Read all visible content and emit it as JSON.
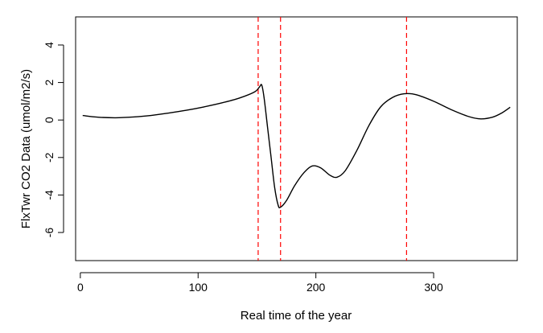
{
  "chart_data": {
    "type": "line",
    "title": "",
    "xlabel": "Real time of the year",
    "ylabel": "FlxTwr CO2 Data (umol/m2/s)",
    "xlim": [
      -4,
      371
    ],
    "ylim": [
      -7.5,
      5.5
    ],
    "x_ticks": [
      0,
      100,
      200,
      300
    ],
    "y_ticks": [
      -6,
      -4,
      -2,
      0,
      2,
      4
    ],
    "grid": false,
    "legend": "none",
    "series": [
      {
        "color": "#000000",
        "points": [
          [
            2,
            0.24
          ],
          [
            15,
            0.15
          ],
          [
            30,
            0.12
          ],
          [
            45,
            0.16
          ],
          [
            60,
            0.24
          ],
          [
            75,
            0.37
          ],
          [
            90,
            0.52
          ],
          [
            105,
            0.7
          ],
          [
            120,
            0.91
          ],
          [
            135,
            1.17
          ],
          [
            148,
            1.5
          ],
          [
            152,
            1.75
          ],
          [
            154,
            1.87
          ],
          [
            156,
            1.2
          ],
          [
            159,
            -0.4
          ],
          [
            162,
            -2.0
          ],
          [
            165,
            -3.6
          ],
          [
            168,
            -4.55
          ],
          [
            170,
            -4.65
          ],
          [
            175,
            -4.3
          ],
          [
            182,
            -3.5
          ],
          [
            190,
            -2.8
          ],
          [
            197,
            -2.45
          ],
          [
            204,
            -2.55
          ],
          [
            212,
            -2.95
          ],
          [
            218,
            -3.05
          ],
          [
            225,
            -2.7
          ],
          [
            235,
            -1.6
          ],
          [
            245,
            -0.3
          ],
          [
            255,
            0.7
          ],
          [
            265,
            1.2
          ],
          [
            275,
            1.4
          ],
          [
            285,
            1.35
          ],
          [
            300,
            1.0
          ],
          [
            315,
            0.55
          ],
          [
            330,
            0.18
          ],
          [
            340,
            0.06
          ],
          [
            350,
            0.15
          ],
          [
            358,
            0.38
          ],
          [
            365,
            0.68
          ]
        ]
      }
    ],
    "vlines": {
      "color": "#ff0000",
      "style": "dashed",
      "x": [
        151,
        170,
        277
      ]
    }
  }
}
